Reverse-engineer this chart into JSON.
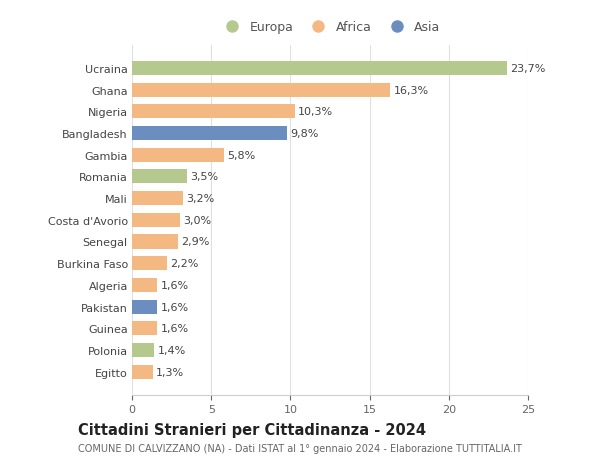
{
  "countries": [
    "Egitto",
    "Polonia",
    "Guinea",
    "Pakistan",
    "Algeria",
    "Burkina Faso",
    "Senegal",
    "Costa d'Avorio",
    "Mali",
    "Romania",
    "Gambia",
    "Bangladesh",
    "Nigeria",
    "Ghana",
    "Ucraina"
  ],
  "values": [
    1.3,
    1.4,
    1.6,
    1.6,
    1.6,
    2.2,
    2.9,
    3.0,
    3.2,
    3.5,
    5.8,
    9.8,
    10.3,
    16.3,
    23.7
  ],
  "labels": [
    "1,3%",
    "1,4%",
    "1,6%",
    "1,6%",
    "1,6%",
    "2,2%",
    "2,9%",
    "3,0%",
    "3,2%",
    "3,5%",
    "5,8%",
    "9,8%",
    "10,3%",
    "16,3%",
    "23,7%"
  ],
  "colors": [
    "#f4b983",
    "#b5c98e",
    "#f4b983",
    "#6b8dbf",
    "#f4b983",
    "#f4b983",
    "#f4b983",
    "#f4b983",
    "#f4b983",
    "#b5c98e",
    "#f4b983",
    "#6b8dbf",
    "#f4b983",
    "#f4b983",
    "#b5c98e"
  ],
  "legend_labels": [
    "Europa",
    "Africa",
    "Asia"
  ],
  "legend_colors": [
    "#b5c98e",
    "#f4b983",
    "#6b8dbf"
  ],
  "title": "Cittadini Stranieri per Cittadinanza - 2024",
  "subtitle": "COMUNE DI CALVIZZANO (NA) - Dati ISTAT al 1° gennaio 2024 - Elaborazione TUTTITALIA.IT",
  "xlim": [
    0,
    25
  ],
  "xticks": [
    0,
    5,
    10,
    15,
    20,
    25
  ],
  "bg_color": "#ffffff",
  "grid_color": "#e0e0e0",
  "bar_height": 0.65,
  "label_fontsize": 8,
  "tick_fontsize": 8,
  "title_fontsize": 10.5,
  "subtitle_fontsize": 7
}
